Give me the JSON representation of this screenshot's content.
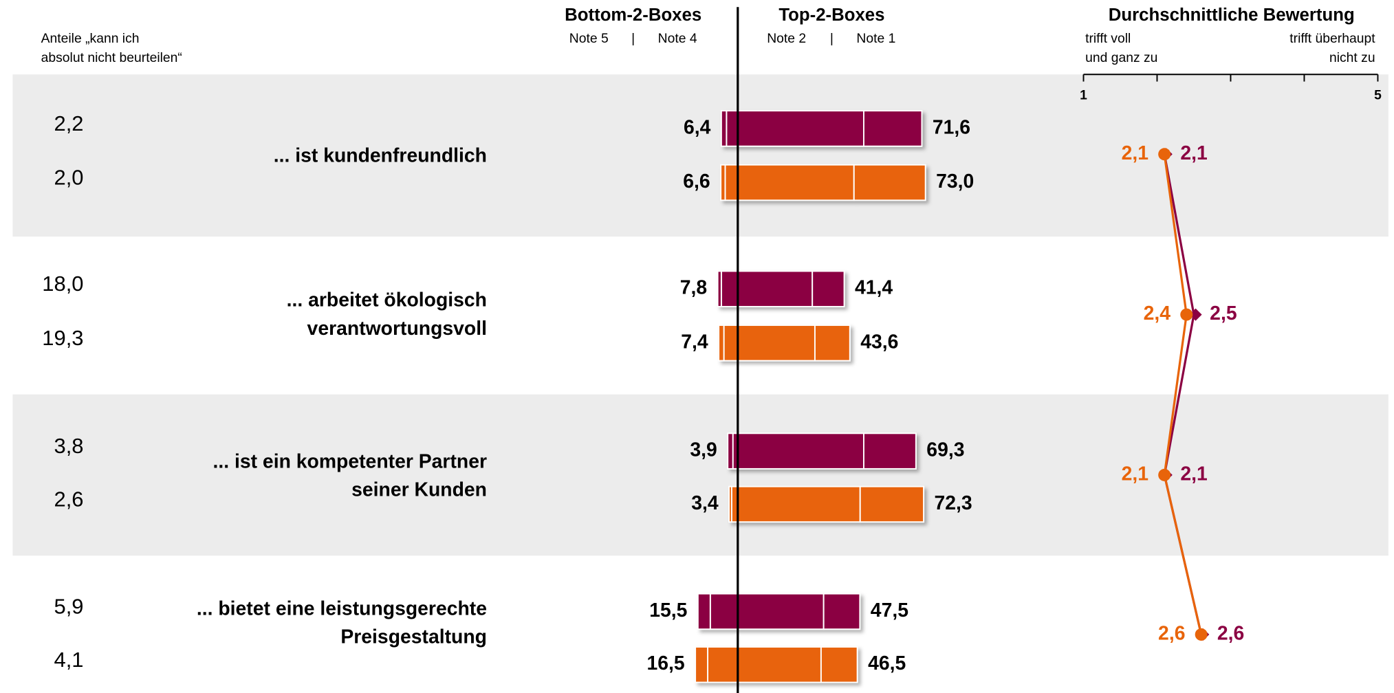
{
  "chart_data": {
    "type": "diverging_bar",
    "na_header": [
      "Anteile „kann ich",
      "absolut nicht beurteilen“"
    ],
    "bottom_header": "Bottom-2-Boxes",
    "top_header": "Top-2-Boxes",
    "bottom_notes": [
      "Note 5",
      "Note 4"
    ],
    "top_notes": [
      "Note 2",
      "Note 1"
    ],
    "separator": "|",
    "mean_header": "Durchschnittliche Bewertung",
    "mean_left": [
      "trifft voll",
      "und ganz zu"
    ],
    "mean_right": [
      "trifft überhaupt",
      "nicht zu"
    ],
    "categories": [
      [
        "... ist kundenfreundlich"
      ],
      [
        "... arbeitet ökologisch",
        "verantwortungsvoll"
      ],
      [
        "... ist ein kompetenter Partner",
        "seiner Kunden"
      ],
      [
        "... bietet eine leistungsgerechte",
        "Preisgestaltung"
      ]
    ],
    "mean_axis": {
      "xlim": [
        1,
        5
      ],
      "xticks": [
        1,
        {
          "value": 2,
          "label": null
        },
        {
          "value": 3,
          "label": null
        },
        {
          "value": 4,
          "label": null
        },
        5
      ]
    },
    "series": [
      {
        "color": "#8b0042",
        "marker": "diamond",
        "na_labels": [
          "2,2",
          "18,0",
          "3,8",
          "5,9"
        ],
        "note5": [
          2.0,
          1.4,
          2.0,
          4.8
        ],
        "note4": [
          4.4,
          6.4,
          1.9,
          10.7
        ],
        "note2": [
          49.0,
          29.0,
          49.0,
          33.4
        ],
        "note1": [
          22.6,
          12.4,
          20.3,
          14.1
        ],
        "bottom_totals": [
          6.4,
          7.8,
          3.9,
          15.5
        ],
        "bottom_labels": [
          "6,4",
          "7,8",
          "3,9",
          "15,5"
        ],
        "top_totals": [
          71.6,
          41.4,
          69.3,
          47.5
        ],
        "top_labels": [
          "71,6",
          "41,4",
          "69,3",
          "47,5"
        ],
        "means": [
          2.1,
          2.5,
          2.1,
          2.6
        ],
        "mean_labels": [
          "2,1",
          "2,5",
          "2,1",
          "2,6"
        ]
      },
      {
        "color": "#e8640a",
        "marker": "circle",
        "na_labels": [
          "2,0",
          "19,3",
          "2,6",
          "4,1"
        ],
        "note5": [
          1.7,
          2.0,
          1.0,
          4.8
        ],
        "note4": [
          4.9,
          5.4,
          2.4,
          11.7
        ],
        "note2": [
          45.2,
          30.0,
          47.6,
          32.4
        ],
        "note1": [
          27.8,
          13.6,
          24.7,
          14.1
        ],
        "bottom_totals": [
          6.6,
          7.4,
          3.4,
          16.5
        ],
        "bottom_labels": [
          "6,6",
          "7,4",
          "3,4",
          "16,5"
        ],
        "top_totals": [
          73.0,
          43.6,
          72.3,
          46.5
        ],
        "top_labels": [
          "73,0",
          "43,6",
          "72,3",
          "46,5"
        ],
        "means": [
          2.1,
          2.4,
          2.1,
          2.6
        ],
        "mean_labels": [
          "2,1",
          "2,4",
          "2,1",
          "2,6"
        ]
      }
    ]
  }
}
